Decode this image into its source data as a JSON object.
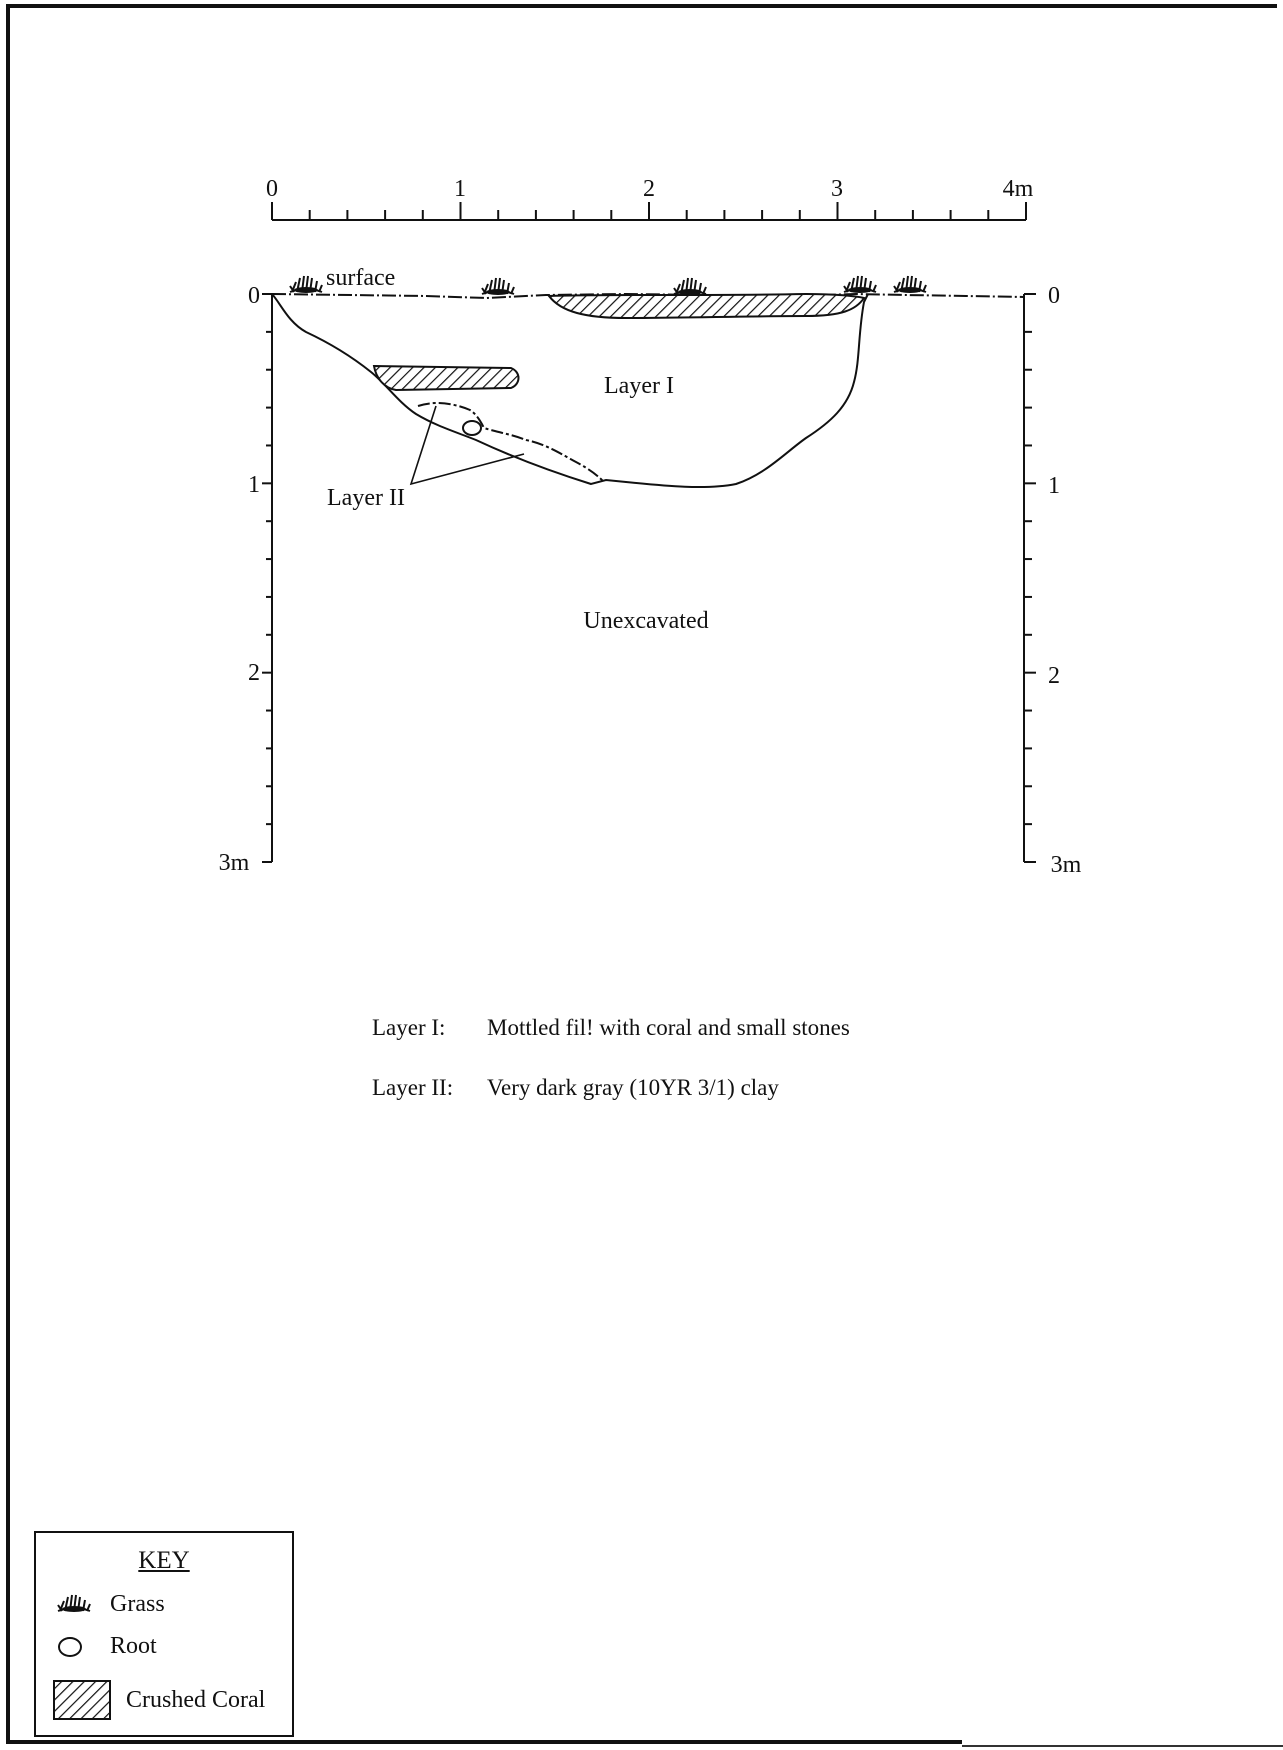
{
  "diagram": {
    "horizontal_scale": {
      "labels": [
        "0",
        "1",
        "2",
        "3",
        "4m"
      ],
      "unit": "m"
    },
    "left_depth_scale": {
      "labels": [
        "0",
        "1",
        "2",
        "3m"
      ]
    },
    "right_depth_scale": {
      "labels": [
        "0",
        "1",
        "2",
        "3m"
      ]
    },
    "surface_label": "surface",
    "layer_labels": {
      "layer_1": "Layer I",
      "layer_2": "Layer II",
      "unexcavated": "Unexcavated"
    }
  },
  "descriptions": [
    {
      "term": "Layer I:",
      "text": "Mottled fil! with coral and small stones"
    },
    {
      "term": "Layer II:",
      "text": "Very dark gray (10YR 3/1) clay"
    }
  ],
  "key": {
    "title": "KEY",
    "items": [
      {
        "icon": "grass-icon",
        "label": "Grass"
      },
      {
        "icon": "root-icon",
        "label": "Root"
      },
      {
        "icon": "crushed-coral-icon",
        "label": "Crushed Coral"
      }
    ]
  },
  "colors": {
    "ink": "#111111",
    "paper": "#ffffff"
  }
}
